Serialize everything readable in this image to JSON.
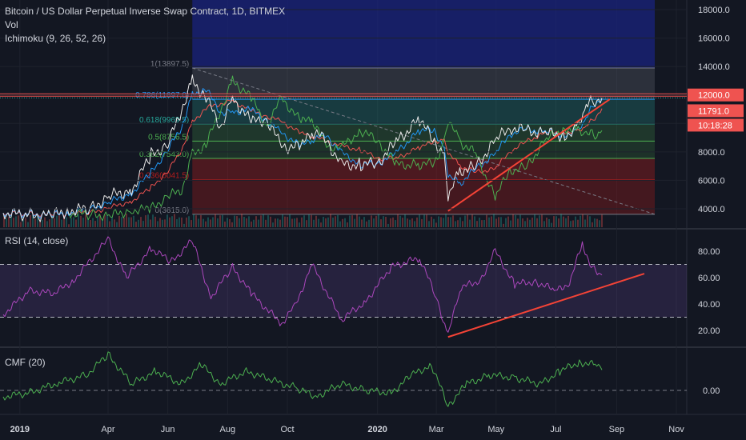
{
  "header": {
    "symbol_title": "Bitcoin / US Dollar Perpetual Inverse Swap Contract, 1D, BITMEX",
    "vol_label": "Vol",
    "ichimoku_label": "Ichimoku (9, 26, 52, 26)"
  },
  "panes": {
    "rsi_label": "RSI (14, close)",
    "cmf_label": "CMF (20)"
  },
  "colors": {
    "background": "#131722",
    "price_line": "#ef5350",
    "rsi_line": "#ab47bc",
    "cmf_line": "#4caf50",
    "tenkan": "#2196f3",
    "kijun": "#ef5350",
    "chikou": "#4caf50",
    "fib_top_band": "#1a237e",
    "trendline": "#f44336"
  },
  "badges": {
    "price_high_level": "12000.0",
    "last_price": "11791.0",
    "countdown": "10:18:28"
  },
  "chart_data": [
    {
      "type": "line",
      "pane": "price",
      "title": "Bitcoin / US Dollar Perpetual Inverse Swap Contract, 1D, BITMEX",
      "y_ticks": [
        4000,
        6000,
        8000,
        10000,
        12000,
        14000,
        16000,
        18000
      ],
      "y_tick_labels": [
        "4000.0",
        "6000.0",
        "8000.0",
        "10000.0",
        "12000.0",
        "14000.0",
        "16000.0",
        "18000.0"
      ],
      "ylim": [
        3200,
        18600
      ],
      "x_tick_labels": [
        "2019",
        "Apr",
        "Jun",
        "Aug",
        "Oct",
        "2020",
        "Mar",
        "May",
        "Jul",
        "Sep",
        "Nov"
      ],
      "x_tick_dates": [
        "2019-01-01",
        "2019-04-01",
        "2019-06-01",
        "2019-08-01",
        "2019-10-01",
        "2020-01-01",
        "2020-03-01",
        "2020-05-01",
        "2020-07-01",
        "2020-09-01",
        "2020-11-01"
      ],
      "series": [
        {
          "name": "close",
          "x": [
            "2018-12-15",
            "2019-01-10",
            "2019-02-01",
            "2019-02-20",
            "2019-03-15",
            "2019-04-02",
            "2019-04-25",
            "2019-05-15",
            "2019-06-01",
            "2019-06-15",
            "2019-06-26",
            "2019-07-10",
            "2019-07-25",
            "2019-08-06",
            "2019-08-25",
            "2019-09-10",
            "2019-09-25",
            "2019-10-15",
            "2019-10-26",
            "2019-11-10",
            "2019-11-25",
            "2019-12-15",
            "2020-01-01",
            "2020-01-20",
            "2020-02-13",
            "2020-02-28",
            "2020-03-09",
            "2020-03-13",
            "2020-03-25",
            "2020-04-10",
            "2020-04-30",
            "2020-05-15",
            "2020-06-01",
            "2020-06-20",
            "2020-07-10",
            "2020-07-22",
            "2020-08-01",
            "2020-08-10",
            "2020-08-17"
          ],
          "y": [
            3700,
            3600,
            3500,
            3900,
            4000,
            4900,
            5300,
            7800,
            8500,
            11000,
            13000,
            11800,
            9800,
            11800,
            10100,
            10300,
            8400,
            8300,
            9500,
            8800,
            7100,
            7100,
            7200,
            8700,
            10300,
            8700,
            7900,
            4800,
            6700,
            6900,
            8800,
            9700,
            9500,
            9300,
            9200,
            9500,
            11300,
            11600,
            11791
          ]
        }
      ],
      "fib_levels": [
        {
          "ratio": "1",
          "price": 13897.5,
          "label": "1(13897.5)"
        },
        {
          "ratio": "0.786",
          "price": 11697.0,
          "label": "0.786(11697.0)"
        },
        {
          "ratio": "0.618",
          "price": 9969.5,
          "label": "0.618(9969.5)"
        },
        {
          "ratio": "0.5",
          "price": 8756.5,
          "label": "0.5(8756.5)"
        },
        {
          "ratio": "0.382",
          "price": 7543.0,
          "label": "0.382(7543.0)"
        },
        {
          "ratio": "0.236",
          "price": 6041.5,
          "label": "0.236(6041.5)"
        },
        {
          "ratio": "0",
          "price": 3615.0,
          "label": "0(3615.0)"
        }
      ],
      "horizontal_level": 12000.0
    },
    {
      "type": "line",
      "pane": "rsi",
      "title": "RSI (14, close)",
      "y_ticks": [
        20,
        40,
        60,
        80
      ],
      "y_tick_labels": [
        "20.00",
        "40.00",
        "60.00",
        "80.00"
      ],
      "ylim": [
        13,
        91
      ],
      "bands": [
        30,
        70
      ],
      "series": [
        {
          "name": "RSI",
          "x": [
            "2018-12-15",
            "2019-01-10",
            "2019-02-05",
            "2019-02-25",
            "2019-04-01",
            "2019-04-20",
            "2019-05-15",
            "2019-06-05",
            "2019-06-26",
            "2019-07-15",
            "2019-08-06",
            "2019-08-25",
            "2019-09-25",
            "2019-10-10",
            "2019-10-26",
            "2019-11-25",
            "2019-12-20",
            "2020-01-15",
            "2020-02-13",
            "2020-03-01",
            "2020-03-13",
            "2020-03-25",
            "2020-04-15",
            "2020-04-30",
            "2020-05-20",
            "2020-06-10",
            "2020-07-01",
            "2020-07-15",
            "2020-07-28",
            "2020-08-06",
            "2020-08-17"
          ],
          "y": [
            32,
            50,
            48,
            58,
            89,
            60,
            82,
            72,
            88,
            45,
            68,
            48,
            25,
            40,
            70,
            28,
            42,
            68,
            75,
            45,
            16,
            52,
            58,
            80,
            55,
            57,
            50,
            56,
            86,
            68,
            62
          ]
        }
      ]
    },
    {
      "type": "line",
      "pane": "cmf",
      "title": "CMF (20)",
      "y_ticks": [
        0
      ],
      "y_tick_labels": [
        "0.00"
      ],
      "ylim": [
        -0.25,
        0.4
      ],
      "series": [
        {
          "name": "CMF",
          "x": [
            "2018-12-15",
            "2019-01-10",
            "2019-02-10",
            "2019-03-10",
            "2019-04-01",
            "2019-04-25",
            "2019-05-20",
            "2019-06-15",
            "2019-07-05",
            "2019-07-25",
            "2019-08-20",
            "2019-09-15",
            "2019-10-10",
            "2019-10-30",
            "2019-11-25",
            "2019-12-20",
            "2020-01-15",
            "2020-02-05",
            "2020-02-25",
            "2020-03-13",
            "2020-04-01",
            "2020-04-25",
            "2020-05-20",
            "2020-06-15",
            "2020-07-05",
            "2020-07-25",
            "2020-08-10",
            "2020-08-17"
          ],
          "y": [
            -0.05,
            -0.02,
            0.06,
            0.12,
            0.28,
            0.05,
            0.15,
            0.05,
            0.2,
            0.05,
            0.15,
            0.08,
            0.02,
            -0.05,
            0.05,
            0.0,
            -0.02,
            0.12,
            0.2,
            -0.12,
            0.05,
            0.12,
            0.1,
            0.05,
            0.15,
            0.22,
            0.2,
            0.16
          ]
        }
      ]
    }
  ]
}
